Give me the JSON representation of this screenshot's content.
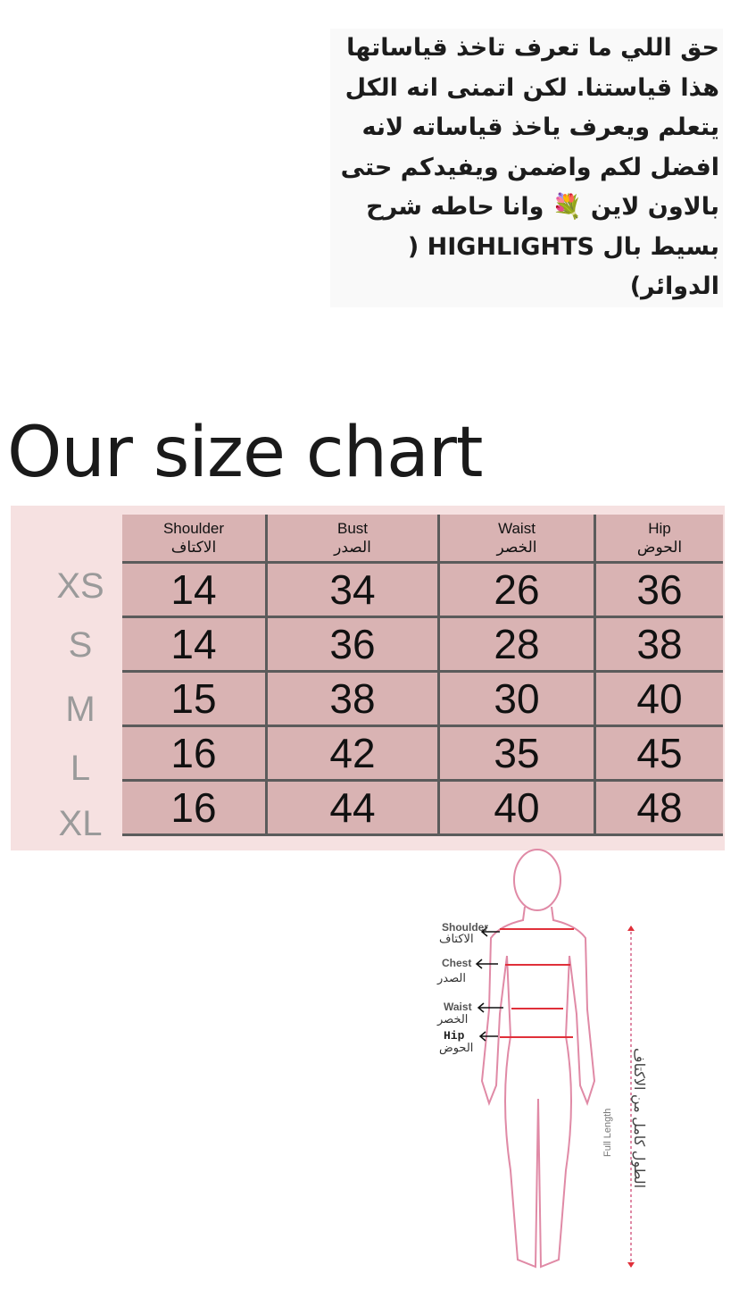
{
  "note": {
    "lines": [
      "حق اللي ما تعرف تاخذ قياساتها",
      "هذا قياستنا. لكن اتمنى انه الكل",
      "يتعلم ويعرف ياخذ قياساته لانه",
      "افضل لكم واضمن ويفيدكم حتى",
      "بالاون لاين 💐 وانا حاطه شرح",
      "بسيط بال HIGHLIGHTS ( الدوائر)"
    ]
  },
  "title": "Our size chart",
  "table": {
    "headers": [
      {
        "en": "Shoulder",
        "ar": "الاكتاف"
      },
      {
        "en": "Bust",
        "ar": "الصدر"
      },
      {
        "en": "Waist",
        "ar": "الخصر"
      },
      {
        "en": "Hip",
        "ar": "الحوض"
      }
    ],
    "rows": [
      {
        "size": "XS",
        "values": [
          "14",
          "34",
          "26",
          "36"
        ]
      },
      {
        "size": "S",
        "values": [
          "14",
          "36",
          "28",
          "38"
        ]
      },
      {
        "size": "M",
        "values": [
          "15",
          "38",
          "30",
          "40"
        ]
      },
      {
        "size": "L",
        "values": [
          "16",
          "42",
          "35",
          "45"
        ]
      },
      {
        "size": "XL",
        "values": [
          "16",
          "44",
          "40",
          "48"
        ]
      }
    ]
  },
  "figure": {
    "labels": [
      {
        "en": "Shoulder",
        "ar": "الاكتاف"
      },
      {
        "en": "Chest",
        "ar": "الصدر"
      },
      {
        "en": "Waist",
        "ar": "الخصر"
      },
      {
        "en": "Hip",
        "ar": "الحوض"
      }
    ],
    "full_length": "Full Length",
    "full_length_ar": "الطول كامل من الاكتاف"
  },
  "colors": {
    "cell": "#d9b3b3",
    "background": "#f6e1e1",
    "grid": "#5b5b5b",
    "figure": "#e08aa6",
    "measure": "#e0303a"
  }
}
